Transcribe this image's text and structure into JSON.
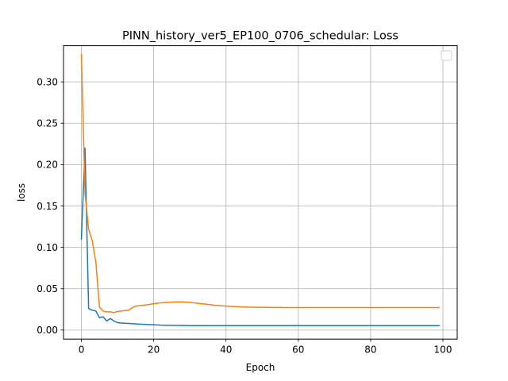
{
  "chart_data": {
    "type": "line",
    "title": "PINN_history_ver5_EP100_0706_schedular: Loss",
    "xlabel": "Epoch",
    "ylabel": "loss",
    "xlim": [
      -4.95,
      103.95
    ],
    "ylim": [
      -0.0109,
      0.3437
    ],
    "xticks": [
      0,
      20,
      40,
      60,
      80,
      100
    ],
    "yticks": [
      0.0,
      0.05,
      0.1,
      0.15,
      0.2,
      0.25,
      0.3
    ],
    "ytick_labels": [
      "0.00",
      "0.05",
      "0.10",
      "0.15",
      "0.20",
      "0.25",
      "0.30"
    ],
    "grid": true,
    "legend": "top-right",
    "series": [
      {
        "color": "#1f77b4",
        "x": [
          0,
          1,
          2,
          3,
          4,
          5,
          6,
          7,
          8,
          9,
          10,
          11,
          12,
          13,
          14,
          15,
          16,
          17,
          18,
          19,
          20,
          21,
          22,
          23,
          24,
          25,
          26,
          27,
          28,
          29,
          30,
          31,
          32,
          33,
          34,
          35,
          36,
          37,
          38,
          39,
          40,
          41,
          42,
          43,
          44,
          45,
          46,
          47,
          48,
          49,
          50,
          51,
          52,
          53,
          54,
          55,
          56,
          57,
          58,
          59,
          60,
          61,
          62,
          63,
          64,
          65,
          66,
          67,
          68,
          69,
          70,
          71,
          72,
          73,
          74,
          75,
          76,
          77,
          78,
          79,
          80,
          81,
          82,
          83,
          84,
          85,
          86,
          87,
          88,
          89,
          90,
          91,
          92,
          93,
          94,
          95,
          96,
          97,
          98,
          99
        ],
        "values": [
          0.11,
          0.22,
          0.026,
          0.024,
          0.023,
          0.015,
          0.016,
          0.011,
          0.014,
          0.011,
          0.009,
          0.0085,
          0.0083,
          0.008,
          0.0078,
          0.0075,
          0.0072,
          0.007,
          0.0068,
          0.0066,
          0.0064,
          0.0062,
          0.006,
          0.0059,
          0.0058,
          0.0057,
          0.0056,
          0.0056,
          0.0055,
          0.0055,
          0.0054,
          0.0054,
          0.0054,
          0.0054,
          0.0054,
          0.0054,
          0.0054,
          0.0054,
          0.0054,
          0.0054,
          0.0054,
          0.0054,
          0.0054,
          0.0054,
          0.0054,
          0.0054,
          0.0054,
          0.0054,
          0.0054,
          0.0054,
          0.0054,
          0.0054,
          0.0054,
          0.0054,
          0.0054,
          0.0054,
          0.0054,
          0.0054,
          0.0054,
          0.0054,
          0.0054,
          0.0054,
          0.0054,
          0.0054,
          0.0054,
          0.0054,
          0.0054,
          0.0054,
          0.0054,
          0.0054,
          0.0054,
          0.0054,
          0.0054,
          0.0054,
          0.0054,
          0.0054,
          0.0054,
          0.0054,
          0.0054,
          0.0054,
          0.0054,
          0.0054,
          0.0054,
          0.0054,
          0.0054,
          0.0054,
          0.0054,
          0.0054,
          0.0054,
          0.0054,
          0.0054,
          0.0054,
          0.0054,
          0.0054,
          0.0054,
          0.0054,
          0.0054,
          0.0054,
          0.0054,
          0.0054
        ]
      },
      {
        "color": "#ff7f0e",
        "x": [
          0,
          1,
          2,
          3,
          4,
          5,
          6,
          7,
          8,
          9,
          10,
          11,
          12,
          13,
          14,
          15,
          16,
          17,
          18,
          19,
          20,
          21,
          22,
          23,
          24,
          25,
          26,
          27,
          28,
          29,
          30,
          31,
          32,
          33,
          34,
          35,
          36,
          37,
          38,
          39,
          40,
          41,
          42,
          43,
          44,
          45,
          46,
          47,
          48,
          49,
          50,
          51,
          52,
          53,
          54,
          55,
          56,
          57,
          58,
          59,
          60,
          61,
          62,
          63,
          64,
          65,
          66,
          67,
          68,
          69,
          70,
          71,
          72,
          73,
          74,
          75,
          76,
          77,
          78,
          79,
          80,
          81,
          82,
          83,
          84,
          85,
          86,
          87,
          88,
          89,
          90,
          91,
          92,
          93,
          94,
          95,
          96,
          97,
          98,
          99
        ],
        "values": [
          0.333,
          0.165,
          0.122,
          0.108,
          0.082,
          0.028,
          0.023,
          0.022,
          0.022,
          0.021,
          0.0225,
          0.023,
          0.0235,
          0.024,
          0.027,
          0.029,
          0.0295,
          0.03,
          0.0305,
          0.031,
          0.032,
          0.0325,
          0.033,
          0.0332,
          0.0335,
          0.0338,
          0.034,
          0.034,
          0.034,
          0.0338,
          0.0335,
          0.033,
          0.0325,
          0.032,
          0.0315,
          0.031,
          0.0305,
          0.03,
          0.0297,
          0.0293,
          0.029,
          0.0288,
          0.0285,
          0.0283,
          0.028,
          0.0279,
          0.0278,
          0.0277,
          0.0276,
          0.0275,
          0.0275,
          0.0274,
          0.0274,
          0.0273,
          0.0273,
          0.0273,
          0.0272,
          0.0272,
          0.0272,
          0.0272,
          0.0272,
          0.0272,
          0.0272,
          0.0272,
          0.0272,
          0.0272,
          0.0272,
          0.0272,
          0.0272,
          0.0272,
          0.0272,
          0.0272,
          0.0272,
          0.0272,
          0.0272,
          0.0272,
          0.0272,
          0.0272,
          0.0272,
          0.0272,
          0.0272,
          0.0272,
          0.0272,
          0.0272,
          0.0272,
          0.0272,
          0.0272,
          0.0272,
          0.0272,
          0.0272,
          0.0272,
          0.0272,
          0.0272,
          0.0272,
          0.0272,
          0.0272,
          0.0272,
          0.0272,
          0.0272,
          0.0272
        ]
      }
    ]
  }
}
